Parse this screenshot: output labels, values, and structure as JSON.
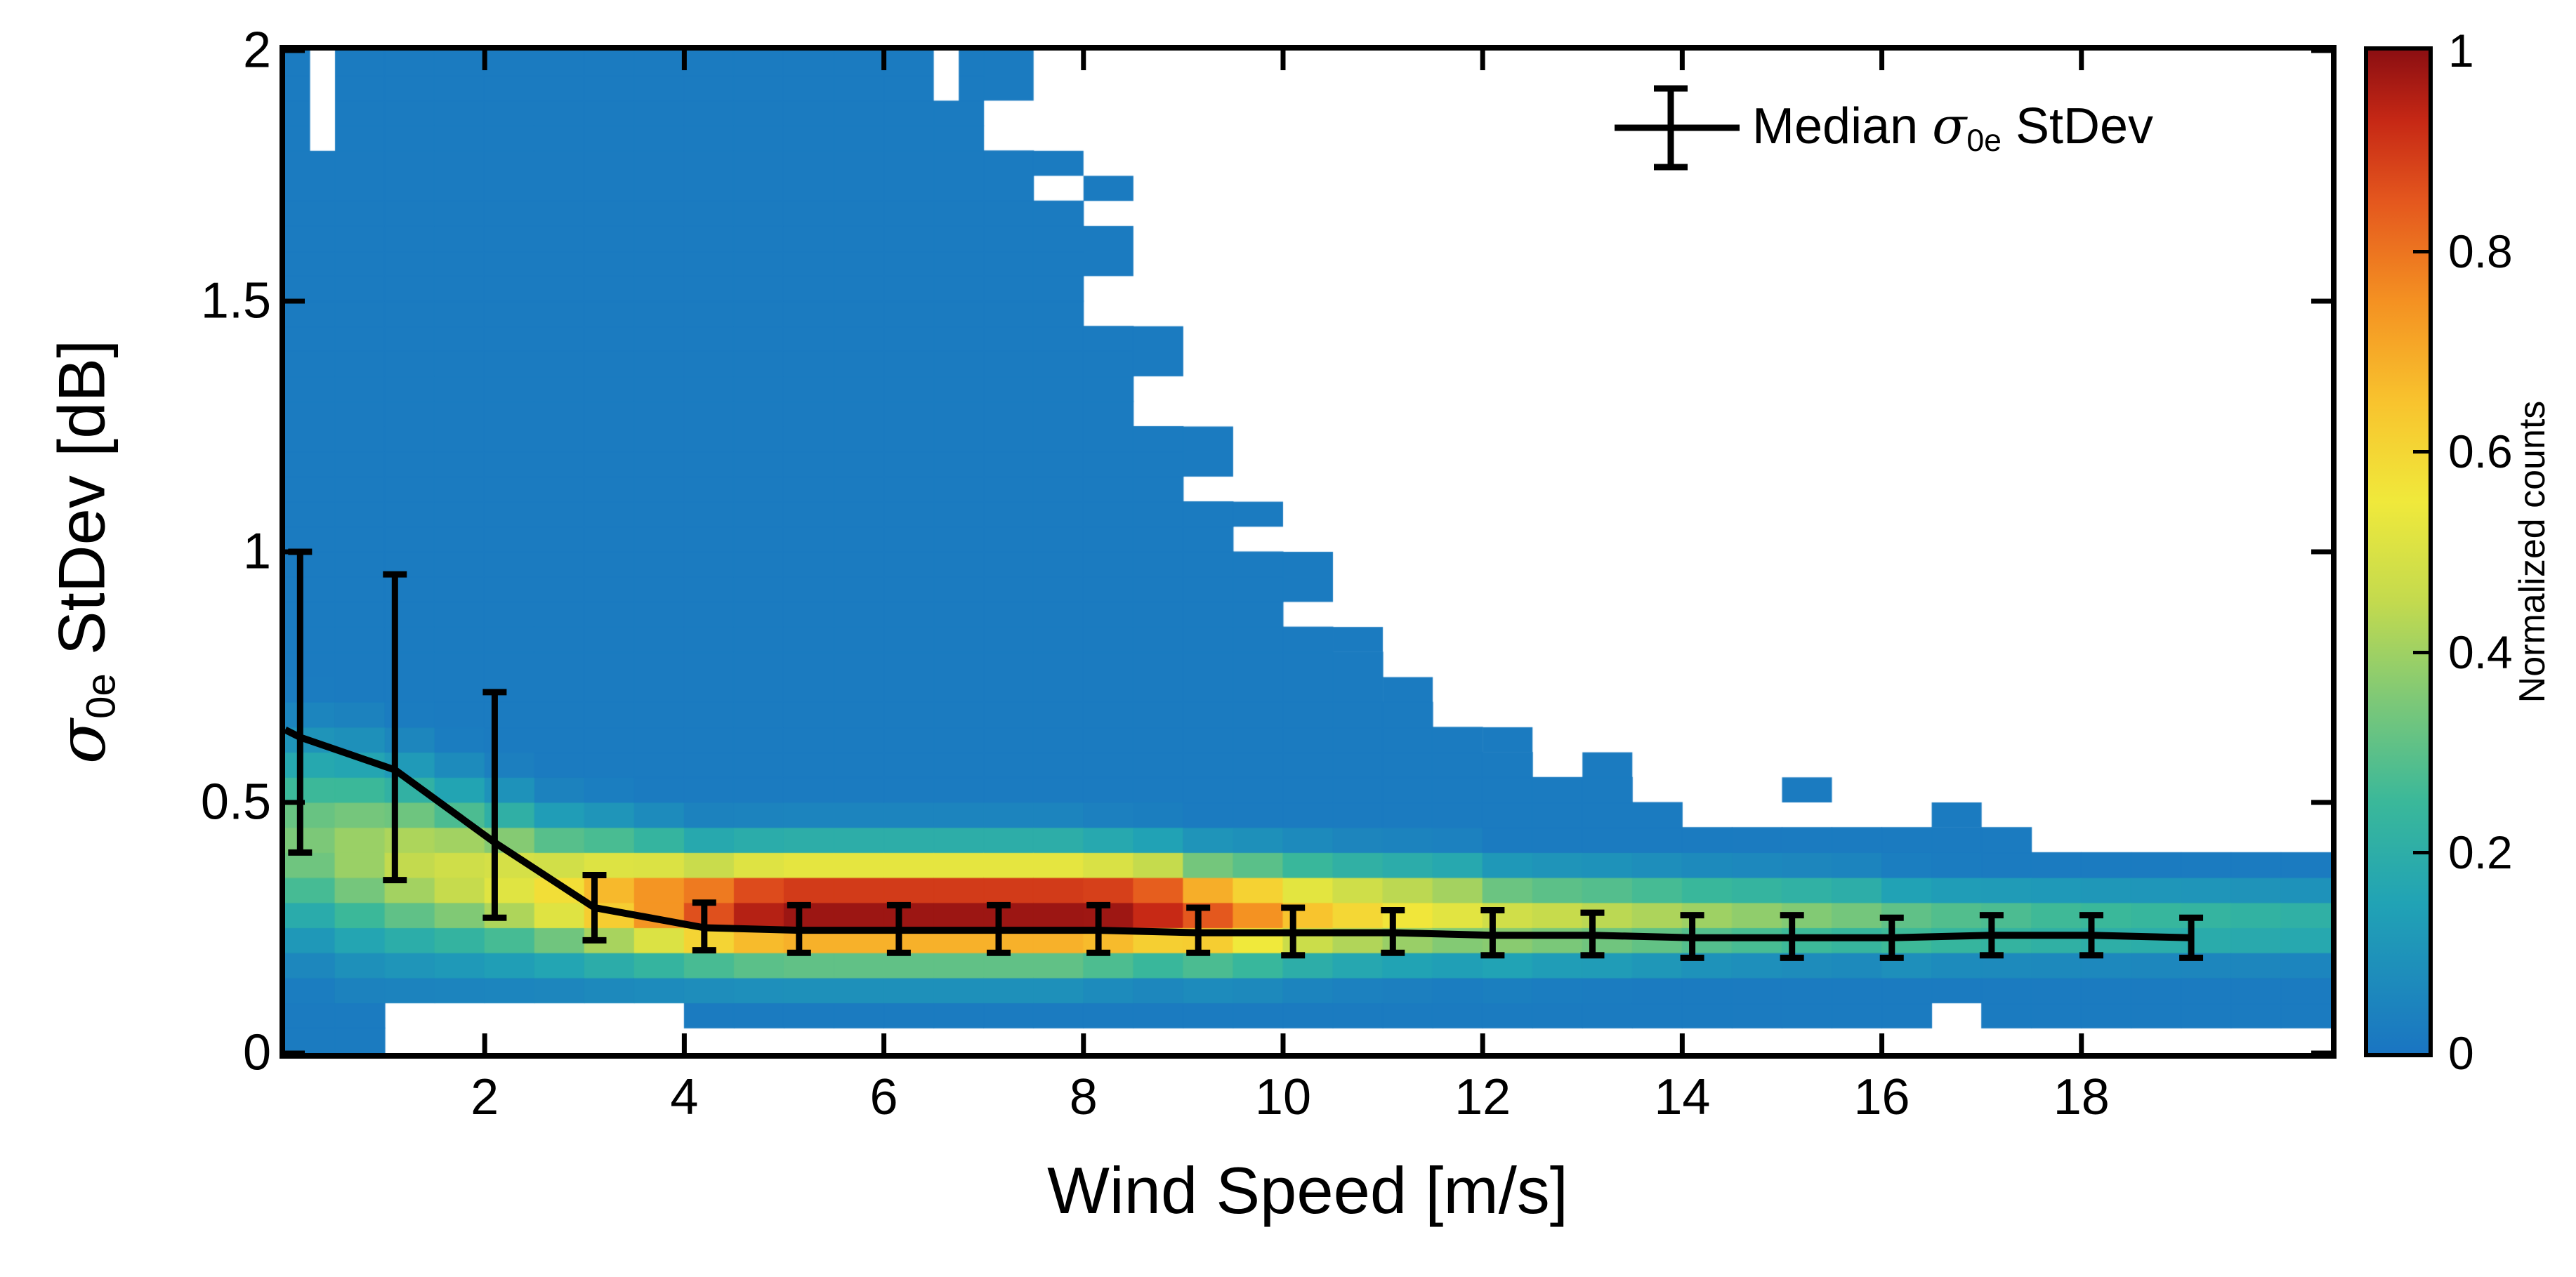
{
  "labels": {
    "x_axis": "Wind Speed [m/s]",
    "y_sigma": "σ",
    "y_sub": "0e",
    "y_rest": " StDev [dB]",
    "legend_prefix": "Median ",
    "legend_sigma": "σ",
    "legend_sub": "0e",
    "legend_rest": " StDev",
    "colorbar": "Normalized counts"
  },
  "chart_data": {
    "type": "heatmap",
    "title": "",
    "xlabel": "Wind Speed [m/s]",
    "ylabel": "σ0e StDev [dB]",
    "colorbar_label": "Normalized counts",
    "legend_label": "Median σ0e StDev",
    "xlim": [
      0,
      20.5
    ],
    "ylim": [
      0,
      2
    ],
    "clim": [
      0,
      1
    ],
    "x_bin_width": 0.5,
    "y_bin_width": 0.05,
    "grid": false,
    "legend_position": "top-right-inside",
    "x_ticks": [
      {
        "v": 2,
        "label": "2"
      },
      {
        "v": 4,
        "label": "4"
      },
      {
        "v": 6,
        "label": "6"
      },
      {
        "v": 8,
        "label": "8"
      },
      {
        "v": 10,
        "label": "10"
      },
      {
        "v": 12,
        "label": "12"
      },
      {
        "v": 14,
        "label": "14"
      },
      {
        "v": 16,
        "label": "16"
      },
      {
        "v": 18,
        "label": "18"
      }
    ],
    "y_ticks": [
      {
        "v": 0,
        "label": "0"
      },
      {
        "v": 0.5,
        "label": "0.5"
      },
      {
        "v": 1,
        "label": "1"
      },
      {
        "v": 1.5,
        "label": "1.5"
      },
      {
        "v": 2,
        "label": "2"
      }
    ],
    "colorbar_ticks": [
      {
        "v": 0,
        "label": "0"
      },
      {
        "v": 0.2,
        "label": "0.2"
      },
      {
        "v": 0.4,
        "label": "0.4"
      },
      {
        "v": 0.6,
        "label": "0.6"
      },
      {
        "v": 0.8,
        "label": "0.8"
      },
      {
        "v": 1,
        "label": "1"
      }
    ],
    "colormap": [
      [
        0.0,
        "#1a75c2"
      ],
      [
        0.15,
        "#21a3b5"
      ],
      [
        0.25,
        "#3ab89a"
      ],
      [
        0.35,
        "#7cc878"
      ],
      [
        0.45,
        "#c3da4e"
      ],
      [
        0.55,
        "#f0e93b"
      ],
      [
        0.65,
        "#f8c32e"
      ],
      [
        0.75,
        "#f49122"
      ],
      [
        0.85,
        "#e4571e"
      ],
      [
        0.93,
        "#c62815"
      ],
      [
        1.0,
        "#8c0f12"
      ]
    ],
    "background_value": 0.02,
    "columns_schema": [
      "x0",
      "bottom",
      "top",
      "peak_value",
      "band_center",
      "band_sigma"
    ],
    "columns": [
      [
        0.0,
        0.0,
        2.0,
        0.35,
        0.42,
        0.13
      ],
      [
        0.5,
        0.0,
        2.0,
        0.4,
        0.4,
        0.13
      ],
      [
        1.0,
        0.1,
        2.0,
        0.45,
        0.38,
        0.12
      ],
      [
        1.5,
        0.1,
        2.0,
        0.48,
        0.36,
        0.11
      ],
      [
        2.0,
        0.1,
        2.0,
        0.52,
        0.34,
        0.1
      ],
      [
        2.5,
        0.1,
        2.0,
        0.58,
        0.32,
        0.09
      ],
      [
        3.0,
        0.1,
        2.0,
        0.68,
        0.31,
        0.085
      ],
      [
        3.5,
        0.1,
        2.0,
        0.78,
        0.3,
        0.08
      ],
      [
        4.0,
        0.05,
        2.0,
        0.88,
        0.29,
        0.075
      ],
      [
        4.5,
        0.05,
        2.0,
        0.97,
        0.29,
        0.075
      ],
      [
        5.0,
        0.05,
        2.0,
        1.0,
        0.29,
        0.075
      ],
      [
        5.5,
        0.05,
        2.0,
        1.0,
        0.29,
        0.075
      ],
      [
        6.0,
        0.05,
        2.0,
        1.0,
        0.29,
        0.075
      ],
      [
        6.5,
        0.05,
        2.0,
        1.0,
        0.29,
        0.075
      ],
      [
        7.0,
        0.05,
        1.8,
        1.0,
        0.29,
        0.075
      ],
      [
        7.5,
        0.05,
        1.7,
        1.0,
        0.29,
        0.075
      ],
      [
        8.0,
        0.05,
        1.45,
        1.0,
        0.29,
        0.072
      ],
      [
        8.5,
        0.05,
        1.25,
        0.95,
        0.29,
        0.07
      ],
      [
        9.0,
        0.05,
        1.1,
        0.85,
        0.28,
        0.07
      ],
      [
        9.5,
        0.05,
        1.0,
        0.75,
        0.28,
        0.07
      ],
      [
        10.0,
        0.05,
        0.85,
        0.65,
        0.28,
        0.068
      ],
      [
        10.5,
        0.05,
        0.8,
        0.6,
        0.28,
        0.066
      ],
      [
        11.0,
        0.05,
        0.7,
        0.56,
        0.28,
        0.065
      ],
      [
        11.5,
        0.05,
        0.65,
        0.52,
        0.28,
        0.064
      ],
      [
        12.0,
        0.05,
        0.6,
        0.48,
        0.27,
        0.062
      ],
      [
        12.5,
        0.05,
        0.55,
        0.46,
        0.27,
        0.06
      ],
      [
        13.0,
        0.05,
        0.55,
        0.44,
        0.27,
        0.06
      ],
      [
        13.5,
        0.05,
        0.5,
        0.42,
        0.27,
        0.058
      ],
      [
        14.0,
        0.05,
        0.45,
        0.4,
        0.27,
        0.056
      ],
      [
        14.5,
        0.05,
        0.45,
        0.38,
        0.27,
        0.055
      ],
      [
        15.0,
        0.05,
        0.45,
        0.36,
        0.27,
        0.054
      ],
      [
        15.5,
        0.05,
        0.45,
        0.34,
        0.27,
        0.053
      ],
      [
        16.0,
        0.05,
        0.45,
        0.32,
        0.26,
        0.052
      ],
      [
        16.5,
        0.1,
        0.45,
        0.3,
        0.26,
        0.05
      ],
      [
        17.0,
        0.05,
        0.45,
        0.29,
        0.26,
        0.05
      ],
      [
        17.5,
        0.05,
        0.4,
        0.27,
        0.26,
        0.05
      ],
      [
        18.0,
        0.05,
        0.4,
        0.26,
        0.26,
        0.05
      ],
      [
        18.5,
        0.05,
        0.4,
        0.25,
        0.26,
        0.05
      ],
      [
        19.0,
        0.05,
        0.4,
        0.24,
        0.26,
        0.05
      ],
      [
        19.5,
        0.05,
        0.4,
        0.23,
        0.26,
        0.05
      ],
      [
        20.0,
        0.05,
        0.4,
        0.22,
        0.26,
        0.05
      ]
    ],
    "speckles_schema": [
      "x",
      "y",
      "w",
      "h"
    ],
    "speckles": [
      [
        7.0,
        1.9,
        0.5,
        0.1
      ],
      [
        7.5,
        1.75,
        0.5,
        0.05
      ],
      [
        8.0,
        1.7,
        0.5,
        0.05
      ],
      [
        8.0,
        1.55,
        0.5,
        0.1
      ],
      [
        8.5,
        1.35,
        0.5,
        0.1
      ],
      [
        9.0,
        1.15,
        0.5,
        0.1
      ],
      [
        9.5,
        1.05,
        0.5,
        0.05
      ],
      [
        10.0,
        0.9,
        0.5,
        0.1
      ],
      [
        10.5,
        0.8,
        0.5,
        0.05
      ],
      [
        11.0,
        0.7,
        0.5,
        0.05
      ],
      [
        12.0,
        0.6,
        0.5,
        0.05
      ],
      [
        13.0,
        0.55,
        0.5,
        0.05
      ],
      [
        15.0,
        0.5,
        0.5,
        0.05
      ],
      [
        16.5,
        0.45,
        0.5,
        0.05
      ]
    ],
    "holes": [
      [
        0.25,
        1.8,
        0.25,
        0.2
      ],
      [
        6.5,
        1.9,
        0.25,
        0.1
      ]
    ],
    "median_series": {
      "name": "Median σ0e StDev",
      "line_start": [
        0,
        0.645
      ],
      "x": [
        0.15,
        1.1,
        2.1,
        3.1,
        4.2,
        5.15,
        6.15,
        7.15,
        8.15,
        9.15,
        10.1,
        11.1,
        12.1,
        13.1,
        14.1,
        15.1,
        16.1,
        17.1,
        18.1,
        19.1
      ],
      "median": [
        0.63,
        0.565,
        0.42,
        0.29,
        0.25,
        0.245,
        0.245,
        0.245,
        0.245,
        0.24,
        0.24,
        0.24,
        0.235,
        0.235,
        0.23,
        0.23,
        0.23,
        0.235,
        0.235,
        0.23
      ],
      "err_low": [
        0.4,
        0.345,
        0.27,
        0.225,
        0.205,
        0.2,
        0.2,
        0.2,
        0.2,
        0.2,
        0.195,
        0.2,
        0.195,
        0.195,
        0.19,
        0.19,
        0.19,
        0.195,
        0.195,
        0.19
      ],
      "err_high": [
        1.0,
        0.955,
        0.72,
        0.355,
        0.3,
        0.295,
        0.295,
        0.295,
        0.295,
        0.29,
        0.29,
        0.285,
        0.285,
        0.28,
        0.275,
        0.275,
        0.27,
        0.275,
        0.275,
        0.27
      ]
    }
  }
}
